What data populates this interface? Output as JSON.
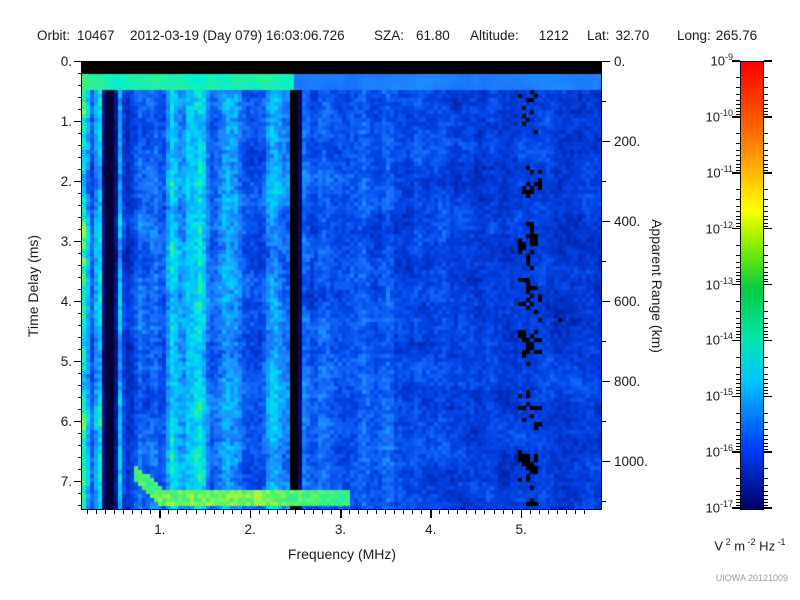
{
  "header": {
    "fields": [
      {
        "label": "Orbit:",
        "value": "10467"
      },
      {
        "label": "",
        "value": "2012-03-19 (Day 079) 16:03:06.726"
      },
      {
        "label": "SZA:",
        "value": "61.80"
      },
      {
        "label": "Altitude:",
        "value": "1212"
      },
      {
        "label": "Lat:",
        "value": "32.70"
      },
      {
        "label": "Long:",
        "value": "265.76"
      }
    ]
  },
  "chart_data": {
    "type": "heatmap",
    "xlabel": "Frequency (MHz)",
    "ylabel_left": "Time Delay (ms)",
    "ylabel_right": "Apparent Range (km)",
    "x_tick_labels": [
      "1.",
      "2.",
      "3.",
      "4.",
      "5."
    ],
    "x_tick_values": [
      1,
      2,
      3,
      4,
      5
    ],
    "x_range_mhz": [
      0.14,
      5.9
    ],
    "y_left_tick_labels": [
      "0.",
      "1.",
      "2.",
      "3.",
      "4.",
      "5.",
      "6.",
      "7."
    ],
    "y_left_tick_values": [
      0,
      1,
      2,
      3,
      4,
      5,
      6,
      7
    ],
    "y_left_range_ms": [
      0,
      7.47
    ],
    "y_right_tick_labels": [
      "0.",
      "200.",
      "400.",
      "600.",
      "800.",
      "1000."
    ],
    "y_right_tick_values": [
      0,
      200,
      400,
      600,
      800,
      1000
    ],
    "y_right_range_km": [
      0,
      1120
    ],
    "colorbar": {
      "scale": "log",
      "base": "10",
      "tick_exponents": [
        "-9",
        "-10",
        "-11",
        "-12",
        "-13",
        "-14",
        "-15",
        "-16",
        "-17"
      ],
      "max": "1e-9",
      "min": "1e-17",
      "units_parts": [
        {
          "base": "V",
          "exp": "2"
        },
        {
          "base": " m",
          "exp": "-2"
        },
        {
          "base": " Hz",
          "exp": "-1"
        }
      ],
      "gradient_stops": [
        {
          "c": "#ff0000",
          "p": 0
        },
        {
          "c": "#ff6600",
          "p": 15
        },
        {
          "c": "#ffcc00",
          "p": 27
        },
        {
          "c": "#ffff00",
          "p": 33
        },
        {
          "c": "#88ee00",
          "p": 41
        },
        {
          "c": "#00cc44",
          "p": 51
        },
        {
          "c": "#00e6b0",
          "p": 62
        },
        {
          "c": "#00c8ff",
          "p": 71
        },
        {
          "c": "#0040ff",
          "p": 86
        },
        {
          "c": "#000066",
          "p": 100
        }
      ]
    },
    "features": [
      "black saturation bar across the top from 0 to ~0.2 ms time delay",
      "bright cyan/green leading-edge row at ~0.25 ms",
      "vertically striped blue noise below ~0.8 MHz with dark absorption bands near 0.4-0.5 MHz",
      "bright cyan vertical line near 1.35 MHz",
      "narrow dark vertical band near 2.5 MHz",
      "background noise dims with increasing frequency; black patches dominate beyond ~4 MHz",
      "green ionospheric echo trace at ~7.2-7.4 ms between ~0.8 and 3.0 MHz with a descending hook near 1 MHz"
    ]
  },
  "watermark": "UIOWA 20121009"
}
